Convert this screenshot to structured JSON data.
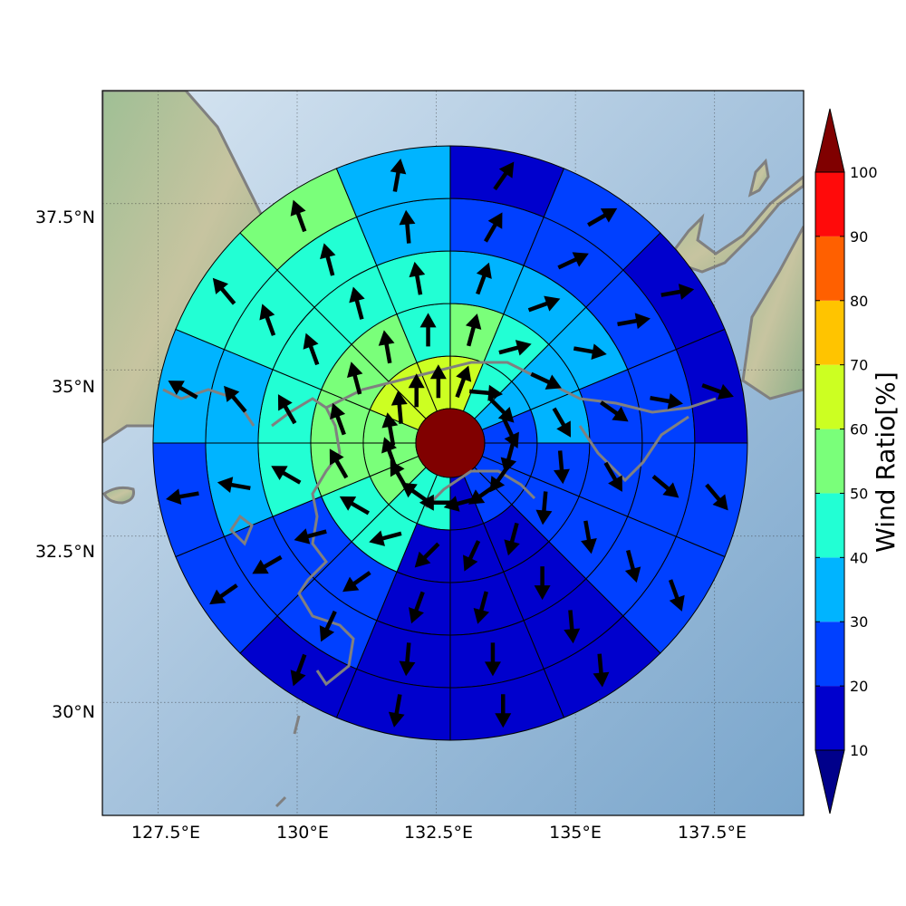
{
  "map": {
    "lon_range": [
      126.5,
      139.1
    ],
    "lat_range": [
      28.3,
      39.2
    ],
    "lon_ticks": [
      127.5,
      130.0,
      132.5,
      135.0,
      137.5
    ],
    "lat_ticks": [
      30.0,
      32.5,
      35.0,
      37.5
    ],
    "lon_tick_labels": [
      "127.5°E",
      "130°E",
      "132.5°E",
      "135°E",
      "137.5°E"
    ],
    "lat_tick_labels": [
      "30°N",
      "32.5°N",
      "35°N",
      "37.5°N"
    ],
    "grid": true,
    "center": {
      "lon": 132.75,
      "lat": 33.9
    },
    "sector_count": 16
  },
  "colorbar": {
    "label": "Wind Ratio[%]",
    "tick_labels": [
      "10",
      "20",
      "30",
      "40",
      "50",
      "60",
      "70",
      "80",
      "90",
      "100"
    ],
    "levels": [
      10,
      20,
      30,
      40,
      50,
      60,
      70,
      80,
      90,
      100
    ],
    "colors": [
      "#0000cd",
      "#0040ff",
      "#00b4ff",
      "#22ffd4",
      "#7aff7a",
      "#ccff22",
      "#ffc400",
      "#ff6000",
      "#ff0a0a"
    ],
    "under_color": "#00008b",
    "over_color": "#800000",
    "extend": "both"
  },
  "wind_field": {
    "center_ratio_pct": 100,
    "rings": [
      {
        "ring": 1,
        "ratio_pct": [
          60,
          45,
          35,
          25,
          20,
          25,
          25,
          15,
          45,
          45,
          55,
          55,
          55,
          65,
          65,
          65
        ],
        "dir_deg": [
          20,
          95,
          135,
          155,
          195,
          215,
          235,
          255,
          270,
          305,
          330,
          340,
          350,
          355,
          0,
          0
        ]
      },
      {
        "ring": 2,
        "ratio_pct": [
          50,
          40,
          35,
          35,
          25,
          25,
          15,
          15,
          15,
          40,
          45,
          55,
          55,
          55,
          55,
          45
        ],
        "dir_deg": [
          15,
          75,
          115,
          150,
          175,
          185,
          195,
          205,
          225,
          255,
          300,
          330,
          340,
          345,
          350,
          0
        ]
      },
      {
        "ring": 3,
        "ratio_pct": [
          35,
          35,
          35,
          25,
          25,
          25,
          15,
          15,
          15,
          25,
          25,
          45,
          45,
          45,
          45,
          45
        ],
        "dir_deg": [
          20,
          70,
          100,
          125,
          150,
          170,
          180,
          195,
          200,
          235,
          255,
          300,
          330,
          340,
          345,
          350
        ]
      },
      {
        "ring": 4,
        "ratio_pct": [
          25,
          25,
          20,
          20,
          20,
          25,
          15,
          15,
          15,
          20,
          25,
          35,
          35,
          45,
          45,
          35
        ],
        "dir_deg": [
          30,
          65,
          80,
          100,
          130,
          165,
          175,
          180,
          185,
          205,
          240,
          280,
          320,
          340,
          345,
          355
        ]
      },
      {
        "ring": 5,
        "ratio_pct": [
          15,
          25,
          15,
          15,
          20,
          20,
          15,
          15,
          15,
          15,
          20,
          25,
          35,
          45,
          55,
          35
        ],
        "dir_deg": [
          35,
          60,
          80,
          110,
          140,
          160,
          175,
          180,
          190,
          200,
          235,
          260,
          300,
          320,
          340,
          10
        ]
      }
    ]
  }
}
